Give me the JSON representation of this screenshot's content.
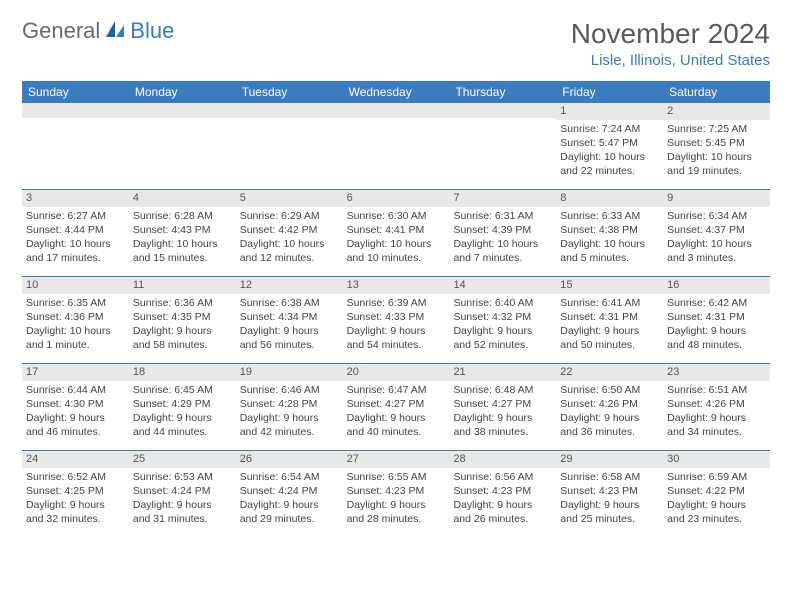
{
  "logo": {
    "general": "General",
    "blue": "Blue"
  },
  "title": "November 2024",
  "location": "Lisle, Illinois, United States",
  "colors": {
    "header_bg": "#3b7bbf",
    "header_text": "#ffffff",
    "daynum_bg": "#e8e8e8",
    "border": "#3b7bbf",
    "logo_gray": "#6a6a6a",
    "logo_blue": "#3b7bbf",
    "title_color": "#5a5a5a",
    "location_color": "#3b7bbf"
  },
  "day_names": [
    "Sunday",
    "Monday",
    "Tuesday",
    "Wednesday",
    "Thursday",
    "Friday",
    "Saturday"
  ],
  "weeks": [
    [
      {
        "num": "",
        "sunrise": "",
        "sunset": "",
        "daylight": ""
      },
      {
        "num": "",
        "sunrise": "",
        "sunset": "",
        "daylight": ""
      },
      {
        "num": "",
        "sunrise": "",
        "sunset": "",
        "daylight": ""
      },
      {
        "num": "",
        "sunrise": "",
        "sunset": "",
        "daylight": ""
      },
      {
        "num": "",
        "sunrise": "",
        "sunset": "",
        "daylight": ""
      },
      {
        "num": "1",
        "sunrise": "Sunrise: 7:24 AM",
        "sunset": "Sunset: 5:47 PM",
        "daylight": "Daylight: 10 hours and 22 minutes."
      },
      {
        "num": "2",
        "sunrise": "Sunrise: 7:25 AM",
        "sunset": "Sunset: 5:45 PM",
        "daylight": "Daylight: 10 hours and 19 minutes."
      }
    ],
    [
      {
        "num": "3",
        "sunrise": "Sunrise: 6:27 AM",
        "sunset": "Sunset: 4:44 PM",
        "daylight": "Daylight: 10 hours and 17 minutes."
      },
      {
        "num": "4",
        "sunrise": "Sunrise: 6:28 AM",
        "sunset": "Sunset: 4:43 PM",
        "daylight": "Daylight: 10 hours and 15 minutes."
      },
      {
        "num": "5",
        "sunrise": "Sunrise: 6:29 AM",
        "sunset": "Sunset: 4:42 PM",
        "daylight": "Daylight: 10 hours and 12 minutes."
      },
      {
        "num": "6",
        "sunrise": "Sunrise: 6:30 AM",
        "sunset": "Sunset: 4:41 PM",
        "daylight": "Daylight: 10 hours and 10 minutes."
      },
      {
        "num": "7",
        "sunrise": "Sunrise: 6:31 AM",
        "sunset": "Sunset: 4:39 PM",
        "daylight": "Daylight: 10 hours and 7 minutes."
      },
      {
        "num": "8",
        "sunrise": "Sunrise: 6:33 AM",
        "sunset": "Sunset: 4:38 PM",
        "daylight": "Daylight: 10 hours and 5 minutes."
      },
      {
        "num": "9",
        "sunrise": "Sunrise: 6:34 AM",
        "sunset": "Sunset: 4:37 PM",
        "daylight": "Daylight: 10 hours and 3 minutes."
      }
    ],
    [
      {
        "num": "10",
        "sunrise": "Sunrise: 6:35 AM",
        "sunset": "Sunset: 4:36 PM",
        "daylight": "Daylight: 10 hours and 1 minute."
      },
      {
        "num": "11",
        "sunrise": "Sunrise: 6:36 AM",
        "sunset": "Sunset: 4:35 PM",
        "daylight": "Daylight: 9 hours and 58 minutes."
      },
      {
        "num": "12",
        "sunrise": "Sunrise: 6:38 AM",
        "sunset": "Sunset: 4:34 PM",
        "daylight": "Daylight: 9 hours and 56 minutes."
      },
      {
        "num": "13",
        "sunrise": "Sunrise: 6:39 AM",
        "sunset": "Sunset: 4:33 PM",
        "daylight": "Daylight: 9 hours and 54 minutes."
      },
      {
        "num": "14",
        "sunrise": "Sunrise: 6:40 AM",
        "sunset": "Sunset: 4:32 PM",
        "daylight": "Daylight: 9 hours and 52 minutes."
      },
      {
        "num": "15",
        "sunrise": "Sunrise: 6:41 AM",
        "sunset": "Sunset: 4:31 PM",
        "daylight": "Daylight: 9 hours and 50 minutes."
      },
      {
        "num": "16",
        "sunrise": "Sunrise: 6:42 AM",
        "sunset": "Sunset: 4:31 PM",
        "daylight": "Daylight: 9 hours and 48 minutes."
      }
    ],
    [
      {
        "num": "17",
        "sunrise": "Sunrise: 6:44 AM",
        "sunset": "Sunset: 4:30 PM",
        "daylight": "Daylight: 9 hours and 46 minutes."
      },
      {
        "num": "18",
        "sunrise": "Sunrise: 6:45 AM",
        "sunset": "Sunset: 4:29 PM",
        "daylight": "Daylight: 9 hours and 44 minutes."
      },
      {
        "num": "19",
        "sunrise": "Sunrise: 6:46 AM",
        "sunset": "Sunset: 4:28 PM",
        "daylight": "Daylight: 9 hours and 42 minutes."
      },
      {
        "num": "20",
        "sunrise": "Sunrise: 6:47 AM",
        "sunset": "Sunset: 4:27 PM",
        "daylight": "Daylight: 9 hours and 40 minutes."
      },
      {
        "num": "21",
        "sunrise": "Sunrise: 6:48 AM",
        "sunset": "Sunset: 4:27 PM",
        "daylight": "Daylight: 9 hours and 38 minutes."
      },
      {
        "num": "22",
        "sunrise": "Sunrise: 6:50 AM",
        "sunset": "Sunset: 4:26 PM",
        "daylight": "Daylight: 9 hours and 36 minutes."
      },
      {
        "num": "23",
        "sunrise": "Sunrise: 6:51 AM",
        "sunset": "Sunset: 4:26 PM",
        "daylight": "Daylight: 9 hours and 34 minutes."
      }
    ],
    [
      {
        "num": "24",
        "sunrise": "Sunrise: 6:52 AM",
        "sunset": "Sunset: 4:25 PM",
        "daylight": "Daylight: 9 hours and 32 minutes."
      },
      {
        "num": "25",
        "sunrise": "Sunrise: 6:53 AM",
        "sunset": "Sunset: 4:24 PM",
        "daylight": "Daylight: 9 hours and 31 minutes."
      },
      {
        "num": "26",
        "sunrise": "Sunrise: 6:54 AM",
        "sunset": "Sunset: 4:24 PM",
        "daylight": "Daylight: 9 hours and 29 minutes."
      },
      {
        "num": "27",
        "sunrise": "Sunrise: 6:55 AM",
        "sunset": "Sunset: 4:23 PM",
        "daylight": "Daylight: 9 hours and 28 minutes."
      },
      {
        "num": "28",
        "sunrise": "Sunrise: 6:56 AM",
        "sunset": "Sunset: 4:23 PM",
        "daylight": "Daylight: 9 hours and 26 minutes."
      },
      {
        "num": "29",
        "sunrise": "Sunrise: 6:58 AM",
        "sunset": "Sunset: 4:23 PM",
        "daylight": "Daylight: 9 hours and 25 minutes."
      },
      {
        "num": "30",
        "sunrise": "Sunrise: 6:59 AM",
        "sunset": "Sunset: 4:22 PM",
        "daylight": "Daylight: 9 hours and 23 minutes."
      }
    ]
  ]
}
